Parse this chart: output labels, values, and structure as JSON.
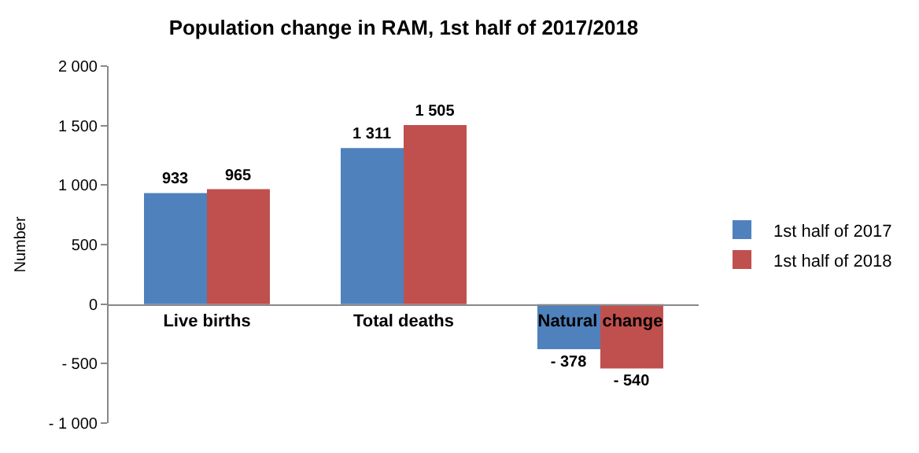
{
  "chart_data": {
    "type": "bar",
    "title": "Population change in RAM, 1st half of 2017/2018",
    "ylabel": "Number",
    "categories": [
      "Live births",
      "Total deaths",
      "Natural change"
    ],
    "series": [
      {
        "name": "1st half of 2017",
        "color": "#4f81bd",
        "values": [
          933,
          1311,
          -378
        ],
        "value_labels": [
          "933",
          "1 311",
          "- 378"
        ]
      },
      {
        "name": "1st half of 2018",
        "color": "#c0504d",
        "values": [
          965,
          1505,
          -540
        ],
        "value_labels": [
          "965",
          "1 505",
          "- 540"
        ]
      }
    ],
    "ylim": [
      -1000,
      2000
    ],
    "yticks": [
      {
        "value": -1000,
        "label": "- 1 000"
      },
      {
        "value": -500,
        "label": "- 500"
      },
      0,
      500,
      {
        "value": 1000,
        "label": "1 000"
      },
      {
        "value": 1500,
        "label": "1 500"
      },
      {
        "value": 2000,
        "label": "2 000"
      }
    ],
    "grid": false,
    "legend": "right"
  }
}
